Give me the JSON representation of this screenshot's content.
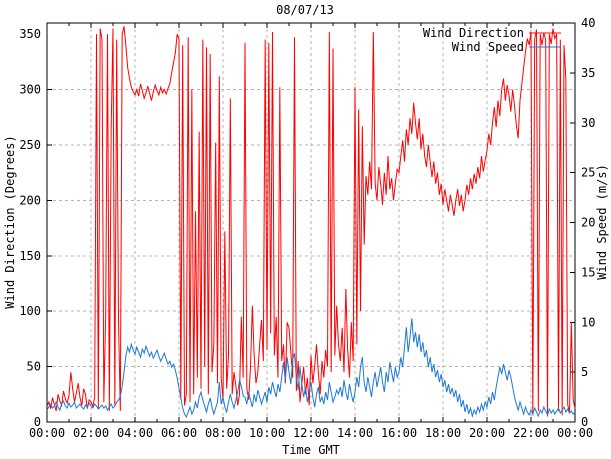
{
  "chart_data": {
    "type": "line",
    "title": "08/07/13",
    "xlabel": "Time GMT",
    "ylabel_left": "Wind Direction (Degrees)",
    "ylabel_right": "Wind Speed (m/s)",
    "x_axis": {
      "start_hour": 0,
      "end_hour": 24,
      "major_tick_hours": 2,
      "minor_tick_hours": 1,
      "tick_labels": [
        "00:00",
        "02:00",
        "04:00",
        "06:00",
        "08:00",
        "10:00",
        "12:00",
        "14:00",
        "16:00",
        "18:00",
        "20:00",
        "22:00",
        "00:00"
      ]
    },
    "y_axis_left": {
      "min": 0,
      "max": 360,
      "tick_step": 50,
      "tick_labels": [
        "0",
        "50",
        "100",
        "150",
        "200",
        "250",
        "300",
        "350"
      ]
    },
    "y_axis_right": {
      "min": 0,
      "max": 40,
      "tick_step": 5,
      "tick_labels": [
        "0",
        "5",
        "10",
        "15",
        "20",
        "25",
        "30",
        "35",
        "40"
      ]
    },
    "grid": {
      "show": true,
      "color": "#b4b4b4",
      "style": "dashed"
    },
    "legend": {
      "position": "top-right-inside",
      "entries": [
        {
          "label": "Wind Direction",
          "color": "#ff0000"
        },
        {
          "label": "Wind Speed",
          "color": "#1e78d2"
        }
      ]
    },
    "sample_interval_minutes": 5,
    "series": [
      {
        "name": "Wind Direction",
        "axis": "left",
        "color": "#ff0000",
        "values": [
          14,
          18,
          12,
          22,
          16,
          10,
          25,
          19,
          15,
          28,
          21,
          17,
          24,
          45,
          30,
          18,
          26,
          35,
          22,
          15,
          30,
          25,
          12,
          20,
          18,
          14,
          22,
          350,
          12,
          355,
          345,
          18,
          95,
          350,
          10,
          265,
          355,
          15,
          345,
          92,
          10,
          350,
          357,
          340,
          320,
          310,
          302,
          298,
          295,
          300,
          294,
          305,
          299,
          292,
          297,
          303,
          296,
          290,
          298,
          304,
          299,
          295,
          302,
          297,
          300,
          296,
          301,
          305,
          315,
          324,
          333,
          350,
          345,
          20,
          340,
          15,
          25,
          347,
          18,
          300,
          25,
          190,
          40,
          262,
          30,
          345,
          50,
          338,
          25,
          332,
          45,
          70,
          252,
          35,
          312,
          40,
          20,
          172,
          30,
          60,
          292,
          25,
          45,
          33,
          15,
          25,
          95,
          40,
          342,
          30,
          20,
          50,
          105,
          60,
          35,
          45,
          70,
          92,
          55,
          345,
          65,
          342,
          80,
          352,
          60,
          95,
          40,
          302,
          55,
          70,
          35,
          90,
          85,
          63,
          40,
          347,
          28,
          55,
          18,
          35,
          50,
          25,
          40,
          15,
          60,
          35,
          50,
          70,
          45,
          25,
          55,
          40,
          65,
          50,
          352,
          45,
          337,
          60,
          105,
          70,
          55,
          85,
          45,
          120,
          65,
          40,
          90,
          55,
          302,
          70,
          282,
          100,
          267,
          160,
          222,
          205,
          235,
          210,
          352,
          215,
          200,
          230,
          215,
          196,
          225,
          205,
          240,
          210,
          220,
          200,
          215,
          228,
          225,
          240,
          254,
          235,
          264,
          250,
          274,
          260,
          288,
          270,
          255,
          274,
          246,
          260,
          240,
          230,
          250,
          235,
          221,
          235,
          215,
          225,
          205,
          215,
          196,
          210,
          200,
          190,
          205,
          196,
          186,
          200,
          210,
          195,
          205,
          190,
          200,
          214,
          205,
          220,
          210,
          224,
          215,
          230,
          220,
          240,
          226,
          236,
          245,
          260,
          250,
          270,
          284,
          266,
          290,
          276,
          300,
          310,
          290,
          304,
          295,
          280,
          300,
          285,
          268,
          256,
          290,
          305,
          320,
          334,
          346,
          340,
          352,
          6,
          345,
          354,
          10,
          350,
          340,
          351,
          345,
          5,
          350,
          341,
          355,
          346,
          350,
          10,
          345,
          6,
          340,
          310,
          16,
          8,
          90,
          20,
          12
        ]
      },
      {
        "name": "Wind Speed",
        "axis": "right",
        "color": "#1e78d2",
        "values": [
          1.2,
          1.5,
          1.8,
          1.4,
          1.6,
          2.0,
          1.5,
          1.2,
          1.8,
          2.1,
          1.6,
          1.4,
          1.9,
          1.5,
          1.7,
          2.0,
          1.4,
          1.6,
          1.8,
          1.5,
          1.3,
          1.7,
          1.5,
          1.9,
          1.6,
          1.4,
          1.8,
          1.6,
          1.3,
          1.5,
          1.7,
          1.4,
          1.6,
          1.2,
          1.5,
          1.8,
          1.4,
          1.6,
          2.0,
          2.2,
          2.6,
          3.6,
          5.0,
          6.6,
          7.5,
          7.0,
          7.8,
          7.2,
          6.8,
          7.5,
          7.0,
          6.5,
          7.3,
          6.9,
          7.6,
          7.1,
          6.6,
          7.0,
          6.4,
          6.8,
          7.2,
          6.6,
          6.1,
          6.5,
          6.9,
          6.3,
          5.8,
          6.1,
          5.5,
          5.8,
          5.2,
          4.4,
          3.4,
          2.4,
          1.4,
          0.8,
          0.5,
          1.0,
          1.5,
          0.8,
          1.2,
          2.0,
          1.4,
          2.5,
          3.0,
          2.2,
          1.6,
          1.0,
          1.8,
          2.4,
          1.5,
          0.8,
          1.4,
          2.0,
          4.0,
          1.8,
          2.5,
          1.5,
          1.0,
          2.0,
          2.8,
          2.0,
          1.4,
          2.2,
          3.0,
          4.2,
          3.6,
          2.6,
          2.5,
          1.8,
          3.0,
          2.2,
          1.5,
          2.8,
          2.0,
          3.2,
          2.5,
          1.8,
          2.4,
          3.0,
          2.0,
          3.5,
          2.8,
          4.0,
          3.2,
          2.5,
          3.8,
          3.0,
          4.5,
          6.0,
          4.2,
          6.5,
          5.0,
          3.8,
          6.3,
          6.9,
          4.5,
          3.2,
          5.5,
          3.8,
          2.5,
          3.5,
          2.0,
          3.0,
          4.0,
          2.5,
          1.5,
          2.8,
          3.5,
          2.0,
          2.5,
          1.8,
          3.0,
          2.2,
          4.0,
          3.0,
          2.0,
          2.5,
          3.2,
          2.8,
          3.5,
          2.5,
          4.2,
          3.0,
          2.2,
          3.8,
          2.8,
          2.0,
          3.0,
          4.5,
          3.5,
          5.5,
          6.5,
          4.0,
          3.0,
          4.5,
          3.5,
          2.5,
          4.0,
          5.0,
          3.5,
          4.5,
          5.5,
          4.0,
          3.0,
          5.0,
          4.0,
          6.0,
          5.0,
          4.0,
          5.5,
          4.5,
          5.0,
          6.5,
          5.5,
          7.5,
          9.5,
          7.0,
          8.5,
          10.4,
          8.0,
          9.0,
          7.5,
          8.8,
          7.0,
          8.0,
          6.5,
          7.2,
          5.5,
          6.5,
          5.0,
          5.8,
          4.5,
          5.2,
          4.0,
          4.8,
          3.5,
          4.2,
          3.0,
          3.8,
          2.8,
          3.4,
          2.5,
          3.2,
          2.0,
          2.8,
          1.5,
          2.2,
          1.0,
          1.8,
          0.8,
          1.4,
          0.6,
          1.2,
          0.8,
          1.5,
          1.0,
          1.8,
          1.2,
          2.0,
          1.5,
          2.5,
          1.8,
          3.0,
          2.2,
          3.5,
          4.5,
          5.5,
          4.8,
          5.8,
          5.0,
          4.2,
          5.2,
          4.5,
          3.5,
          2.5,
          1.8,
          1.2,
          2.0,
          1.4,
          0.8,
          1.5,
          1.0,
          0.7,
          1.2,
          0.8,
          1.4,
          1.0,
          0.6,
          1.2,
          0.9,
          1.5,
          1.1,
          0.7,
          1.3,
          0.9,
          1.2,
          0.8,
          1.1,
          1.4,
          0.9,
          1.2,
          1.5,
          1.0,
          1.3,
          0.9,
          1.1,
          0.8,
          1.0
        ]
      }
    ]
  }
}
